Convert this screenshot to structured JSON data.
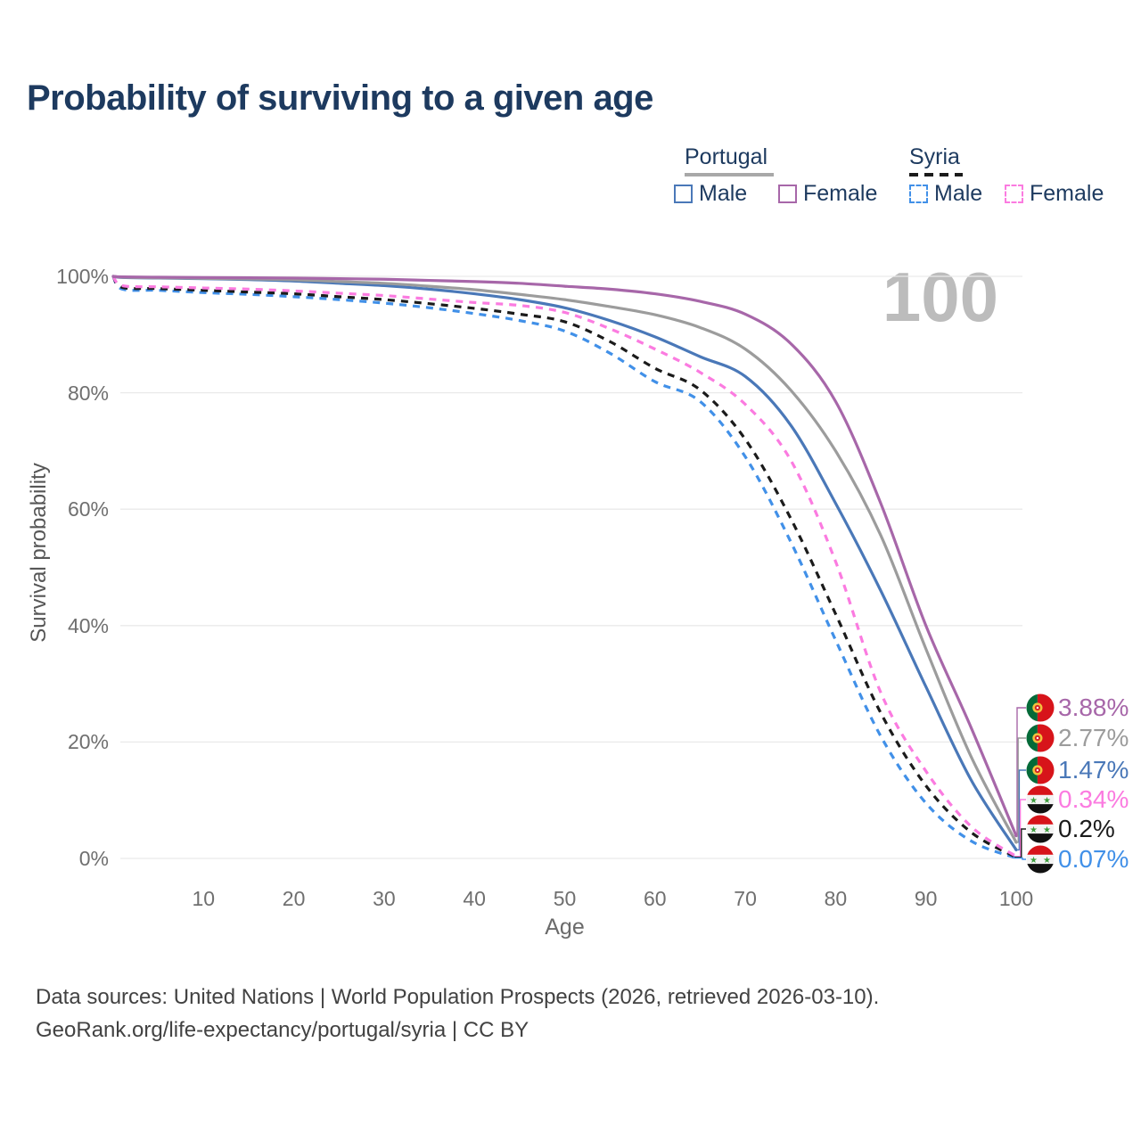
{
  "title": "Probability of surviving to a given age",
  "watermark": "100",
  "legend": {
    "portugal": {
      "label": "Portugal",
      "line_style": "solid"
    },
    "syria": {
      "label": "Syria",
      "line_style": "dashed"
    },
    "items": [
      {
        "label": "Male",
        "country": "Portugal",
        "style": "solid",
        "color_key": "pt_male"
      },
      {
        "label": "Female",
        "country": "Portugal",
        "style": "solid",
        "color_key": "pt_female"
      },
      {
        "label": "Male",
        "country": "Syria",
        "style": "dashed",
        "color_key": "sy_male"
      },
      {
        "label": "Female",
        "country": "Syria",
        "style": "dashed",
        "color_key": "sy_female"
      }
    ]
  },
  "colors": {
    "pt_female": "#a767a9",
    "pt_both": "#9c9c9c",
    "pt_male": "#4a78b8",
    "sy_female": "#fb7be0",
    "sy_both": "#1b1b1b",
    "sy_male": "#4190e8",
    "grid": "#e9e9e9",
    "title_text": "#1d3a5f",
    "tick_text": "#6f6f6f",
    "watermark_text": "#bcbcbc"
  },
  "axes": {
    "x_label": "Age",
    "y_label": "Survival probability",
    "x_ticks": [
      10,
      20,
      30,
      40,
      50,
      60,
      70,
      80,
      90,
      100
    ],
    "y_ticks": [
      "0%",
      "20%",
      "40%",
      "60%",
      "80%",
      "100%"
    ]
  },
  "chart_data": {
    "type": "line",
    "title": "Probability of surviving to a given age",
    "xlabel": "Age",
    "ylabel": "Survival probability",
    "xlim": [
      0,
      100
    ],
    "ylim": [
      0,
      100
    ],
    "grid": "horizontal",
    "x": [
      0,
      1,
      5,
      10,
      15,
      20,
      25,
      30,
      35,
      40,
      45,
      50,
      55,
      60,
      65,
      70,
      75,
      80,
      85,
      90,
      95,
      100
    ],
    "series": [
      {
        "id": "portugal-female",
        "name": "Portugal Female",
        "country": "Portugal",
        "sex": "Female",
        "style": "solid",
        "color": "#a767a9",
        "end_label": "3.88%",
        "values": [
          100,
          99.9,
          99.85,
          99.8,
          99.75,
          99.7,
          99.6,
          99.5,
          99.3,
          99.1,
          98.8,
          98.3,
          97.8,
          97.0,
          95.7,
          93.5,
          88.5,
          78.5,
          61,
          40,
          22.5,
          3.88
        ]
      },
      {
        "id": "portugal-both",
        "name": "Portugal Both sexes",
        "country": "Portugal",
        "sex": "Both",
        "style": "solid",
        "color": "#9c9c9c",
        "end_label": "2.77%",
        "values": [
          100,
          99.85,
          99.75,
          99.65,
          99.55,
          99.4,
          99.1,
          98.8,
          98.3,
          97.7,
          96.9,
          96.0,
          94.8,
          93.4,
          91.2,
          87.5,
          80.5,
          70,
          55.5,
          36,
          17.5,
          2.77
        ]
      },
      {
        "id": "portugal-male",
        "name": "Portugal Male",
        "country": "Portugal",
        "sex": "Male",
        "style": "solid",
        "color": "#4a78b8",
        "end_label": "1.47%",
        "values": [
          100,
          99.8,
          99.7,
          99.6,
          99.45,
          99.2,
          98.8,
          98.4,
          97.8,
          97.0,
          96.0,
          94.6,
          92.4,
          89.6,
          86.2,
          82.8,
          74.5,
          61,
          46,
          29.5,
          13.5,
          1.47
        ]
      },
      {
        "id": "syria-female",
        "name": "Syria Female",
        "country": "Syria",
        "sex": "Female",
        "style": "dashed",
        "color": "#fb7be0",
        "end_label": "0.34%",
        "values": [
          100,
          98.4,
          98.2,
          98.0,
          97.8,
          97.5,
          97.1,
          96.7,
          96.1,
          95.5,
          95.0,
          93.8,
          91.0,
          87.5,
          83.5,
          78.0,
          68.5,
          51,
          28.5,
          15,
          5.5,
          0.34
        ]
      },
      {
        "id": "syria-both",
        "name": "Syria Both sexes",
        "country": "Syria",
        "sex": "Both",
        "style": "dashed",
        "color": "#1b1b1b",
        "end_label": "0.2%",
        "values": [
          100,
          98.1,
          97.9,
          97.6,
          97.3,
          97.0,
          96.5,
          96.0,
          95.3,
          94.5,
          93.5,
          92.2,
          88.8,
          84.2,
          80.5,
          72.0,
          58.5,
          42,
          25,
          12.5,
          4.5,
          0.2
        ]
      },
      {
        "id": "syria-male",
        "name": "Syria Male",
        "country": "Syria",
        "sex": "Male",
        "style": "dashed",
        "color": "#4190e8",
        "end_label": "0.07%",
        "values": [
          100,
          97.8,
          97.6,
          97.2,
          96.9,
          96.5,
          96.0,
          95.4,
          94.6,
          93.6,
          92.4,
          90.6,
          86.8,
          81.9,
          78.5,
          69.0,
          54.5,
          37.5,
          21,
          9.5,
          3,
          0.07
        ]
      }
    ],
    "end_labels": [
      {
        "series": "portugal-female",
        "flag": "portugal",
        "text": "3.88%",
        "color": "#a767a9"
      },
      {
        "series": "portugal-both",
        "flag": "portugal",
        "text": "2.77%",
        "color": "#9c9c9c"
      },
      {
        "series": "portugal-male",
        "flag": "portugal",
        "text": "1.47%",
        "color": "#4a78b8"
      },
      {
        "series": "syria-female",
        "flag": "syria",
        "text": "0.34%",
        "color": "#fb7be0"
      },
      {
        "series": "syria-both",
        "flag": "syria",
        "text": "0.2%",
        "color": "#1b1b1b"
      },
      {
        "series": "syria-male",
        "flag": "syria",
        "text": "0.07%",
        "color": "#4190e8"
      }
    ]
  },
  "footer": {
    "line1": "Data sources: United Nations | World Population Prospects (2026, retrieved 2026-03-10).",
    "line2": "GeoRank.org/life-expectancy/portugal/syria | CC BY"
  }
}
